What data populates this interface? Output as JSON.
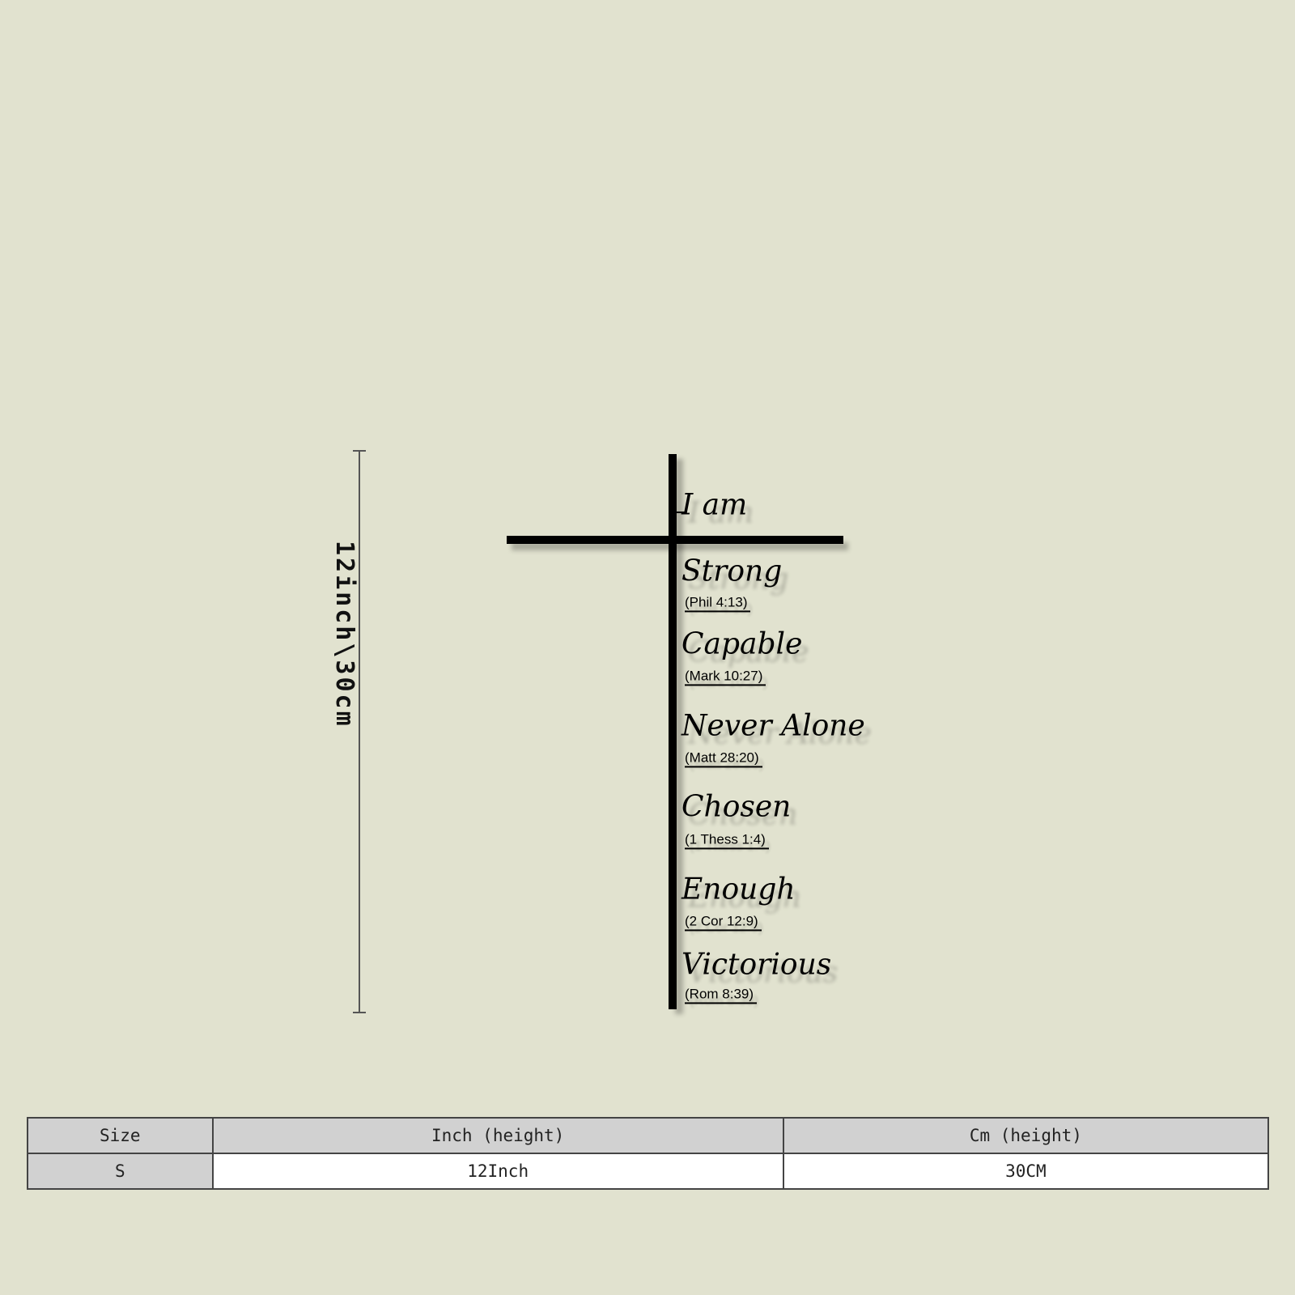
{
  "product": {
    "dimension_label": "12inch\\30cm",
    "words": [
      {
        "word": "I am",
        "ref": ""
      },
      {
        "word": "Strong",
        "ref": "(Phil 4:13)"
      },
      {
        "word": "Capable",
        "ref": "(Mark 10:27)"
      },
      {
        "word": "Never Alone",
        "ref": "(Matt 28:20)"
      },
      {
        "word": "Chosen",
        "ref": "(1 Thess 1:4)"
      },
      {
        "word": "Enough",
        "ref": "(2 Cor 12:9)"
      },
      {
        "word": "Victorious",
        "ref": "(Rom 8:39)"
      }
    ]
  },
  "size_table": {
    "headers": [
      "Size",
      "Inch (height)",
      "Cm (height)"
    ],
    "rows": [
      [
        "S",
        "12Inch",
        "30CM"
      ]
    ]
  },
  "colors": {
    "background": "#e1e2cf",
    "cross": "#000000",
    "header_fill": "#d1d1d1"
  }
}
